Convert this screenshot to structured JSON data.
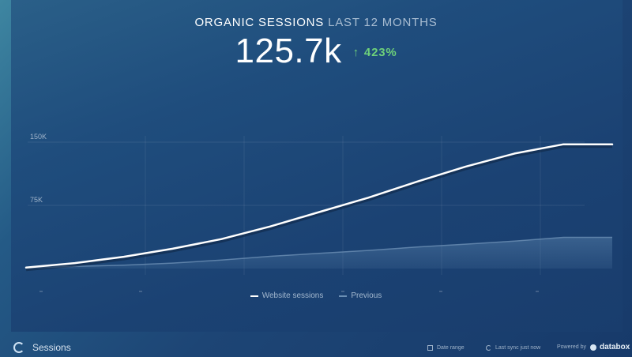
{
  "widget": {
    "title": "ORGANIC SESSIONS",
    "range": "LAST 12 MONTHS",
    "value": "125.7k",
    "delta_arrow": "↑",
    "delta": "423%"
  },
  "chart_data": {
    "type": "line",
    "x": [
      1,
      2,
      3,
      4,
      5,
      6,
      7,
      8,
      9,
      10,
      11,
      12,
      13
    ],
    "series": [
      {
        "name": "Website sessions",
        "values": [
          1200,
          6500,
          14000,
          23500,
          35000,
          50000,
          67000,
          84000,
          103000,
          121000,
          136500,
          147500,
          147500
        ],
        "color": "#ffffff"
      },
      {
        "name": "Previous",
        "values": [
          600,
          2500,
          4000,
          6500,
          10000,
          14500,
          18000,
          21500,
          25500,
          29000,
          32500,
          37000,
          37000
        ],
        "color": "#6b8fb4"
      }
    ],
    "y_ticks": [
      "150K",
      "75K"
    ],
    "ylim": [
      0,
      150000
    ],
    "grid": true,
    "legend": "bottom-center"
  },
  "footer": {
    "title": "Sessions",
    "date_range": "Date range",
    "last_sync": "Last sync just now",
    "powered_by": "Powered by",
    "brand": "databox"
  },
  "colors": {
    "accent_positive": "#6ed17a",
    "line_current": "#ffffff",
    "line_previous": "#6b8fb4",
    "background": "#1c3f6e"
  }
}
